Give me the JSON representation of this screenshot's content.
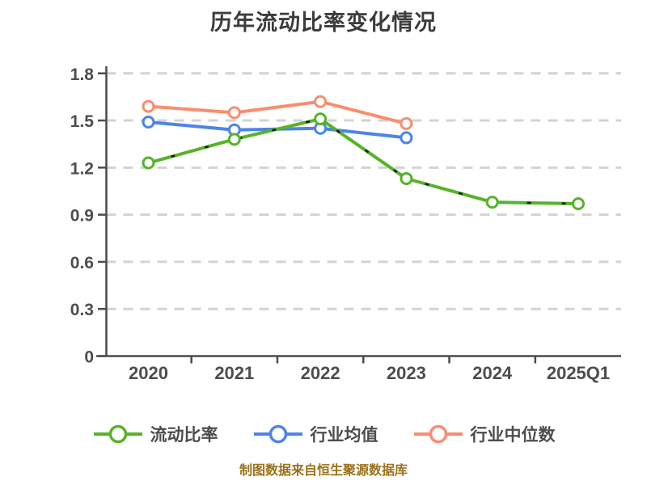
{
  "title": "历年流动比率变化情况",
  "footer": "制图数据来自恒生聚源数据库",
  "colors": {
    "title_text": "#3c3c3c",
    "axis": "#4c4c4c",
    "tick_text": "#4d4d4d",
    "gridline": "#d3d3d3",
    "marker_fill": "#ffffff",
    "footer_text": "#9b721b",
    "series_current_ratio": "#57b32a",
    "series_industry_mean": "#4e84e8",
    "series_industry_median": "#f98d6e"
  },
  "chart_data": {
    "type": "line",
    "title": "历年流动比率变化情况",
    "categories": [
      "2020",
      "2021",
      "2022",
      "2023",
      "2024",
      "2025Q1"
    ],
    "series": [
      {
        "name": "流动比率",
        "key": "current-ratio",
        "color": "#57b32a",
        "values": [
          1.23,
          1.38,
          1.51,
          1.13,
          0.98,
          0.97
        ],
        "black_dash_overlay": true
      },
      {
        "name": "行业均值",
        "key": "industry-mean",
        "color": "#4e84e8",
        "values": [
          1.49,
          1.44,
          1.45,
          1.39,
          null,
          null
        ],
        "black_dash_overlay": false
      },
      {
        "name": "行业中位数",
        "key": "industry-median",
        "color": "#f98d6e",
        "values": [
          1.59,
          1.55,
          1.62,
          1.48,
          null,
          null
        ],
        "black_dash_overlay": false
      }
    ],
    "xlabel": "",
    "ylabel": "",
    "ylim": [
      0,
      1.8
    ],
    "yticks": [
      0,
      0.3,
      0.6,
      0.9,
      1.2,
      1.5,
      1.8
    ],
    "ytick_labels": [
      "0",
      "0.3",
      "0.6",
      "0.9",
      "1.2",
      "1.5",
      "1.8"
    ],
    "grid": "dashed horizontal",
    "marker": "circle-white-fill",
    "legend_position": "bottom"
  }
}
